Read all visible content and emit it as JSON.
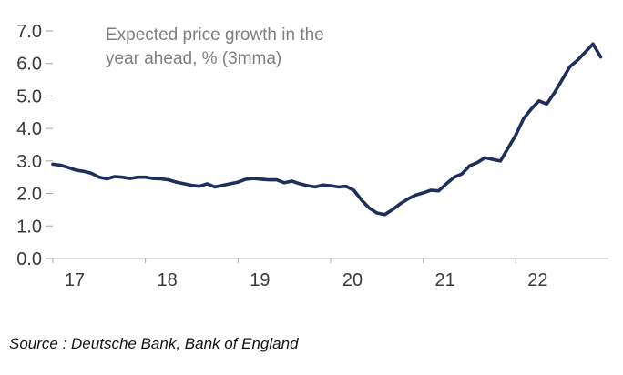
{
  "chart_data": {
    "type": "line",
    "title": "Expected price growth in the year ahead, % (3mma)",
    "annotation_lines": [
      "Expected price growth in the",
      "year ahead, % (3mma)"
    ],
    "source": "Source : Deutsche Bank, Bank of England",
    "line_color": "#1d2f5a",
    "ylim": [
      0,
      7
    ],
    "xlim": [
      2017,
      2023
    ],
    "y_ticks": [
      "7.0",
      "6.0",
      "5.0",
      "4.0",
      "3.0",
      "2.0",
      "1.0",
      "0.0"
    ],
    "x_ticks": [
      "17",
      "18",
      "19",
      "20",
      "21",
      "22"
    ],
    "x_tick_years": [
      2017,
      2018,
      2019,
      2020,
      2021,
      2022
    ],
    "grid": false,
    "legend": false,
    "series": [
      {
        "name": "Expected price growth, % (3mma)",
        "x_start_year": 2017,
        "x_step_months": 1,
        "values": [
          2.9,
          2.87,
          2.8,
          2.72,
          2.68,
          2.62,
          2.5,
          2.45,
          2.52,
          2.5,
          2.46,
          2.5,
          2.5,
          2.46,
          2.45,
          2.42,
          2.35,
          2.3,
          2.25,
          2.22,
          2.3,
          2.2,
          2.25,
          2.3,
          2.35,
          2.44,
          2.46,
          2.44,
          2.42,
          2.42,
          2.33,
          2.38,
          2.3,
          2.24,
          2.2,
          2.26,
          2.24,
          2.2,
          2.22,
          2.1,
          1.8,
          1.55,
          1.4,
          1.35,
          1.5,
          1.68,
          1.83,
          1.95,
          2.02,
          2.1,
          2.08,
          2.3,
          2.5,
          2.6,
          2.85,
          2.95,
          3.1,
          3.05,
          3.0,
          3.4,
          3.8,
          4.3,
          4.6,
          4.85,
          4.75,
          5.1,
          5.5,
          5.9,
          6.1,
          6.35,
          6.6,
          6.2
        ]
      }
    ]
  }
}
